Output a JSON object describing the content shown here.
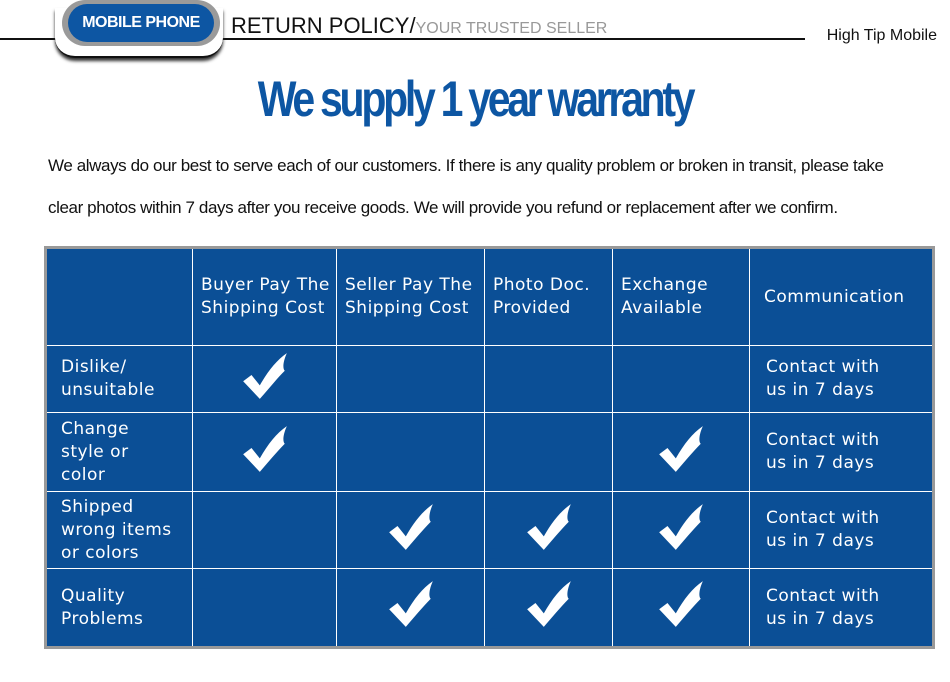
{
  "header": {
    "badge": "MOBILE PHONE",
    "title": "RETURN POLICY/",
    "subtitle": "YOUR TRUSTED SELLER",
    "brand": "High Tip Mobile"
  },
  "headline": "We supply 1 year warranty",
  "paragraph": {
    "line1": "We always do our best to serve each of our customers. If there is any quality problem or broken in transit, please take",
    "line2": "clear photos within 7 days after you receive goods. We will provide you refund or replacement after we confirm."
  },
  "colors": {
    "brand": "#0d56a3",
    "table_bg": "#0b4f96"
  },
  "table": {
    "headers": [
      "",
      "Buyer Pay The Shipping Cost",
      "Seller Pay The Shipping Cost",
      "Photo Doc. Provided",
      "Exchange Available",
      "Communication"
    ],
    "rows": [
      {
        "label": "Dislike/ unsuitable",
        "checks": [
          true,
          false,
          false,
          false
        ],
        "communication": "Contact with us in 7 days"
      },
      {
        "label": "Change style or color",
        "checks": [
          true,
          false,
          false,
          true
        ],
        "communication": "Contact with us in 7 days"
      },
      {
        "label": "Shipped wrong items or colors",
        "checks": [
          false,
          true,
          true,
          true
        ],
        "communication": "Contact with us in 7 days"
      },
      {
        "label": "Quality Problems",
        "checks": [
          false,
          true,
          true,
          true
        ],
        "communication": "Contact with us in 7 days"
      }
    ]
  }
}
